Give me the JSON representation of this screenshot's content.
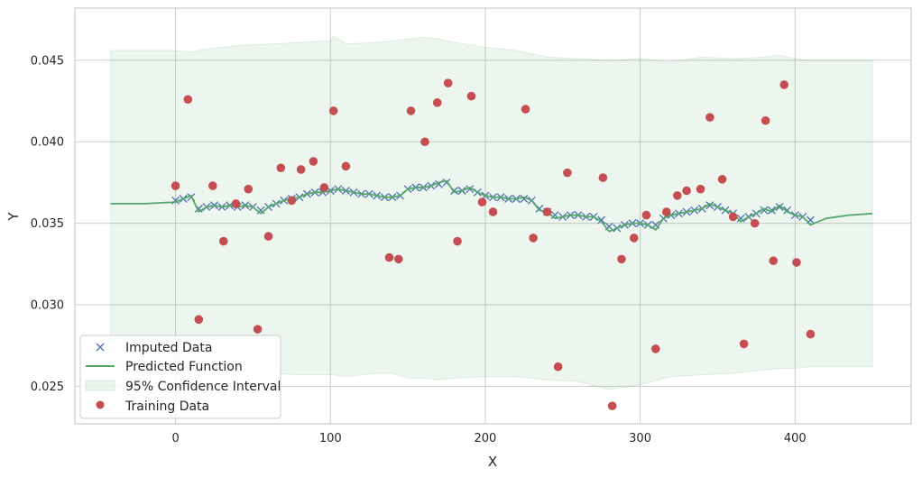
{
  "chart_data": {
    "type": "scatter",
    "title": "",
    "xlabel": "X",
    "ylabel": "Y",
    "xlim": [
      -65,
      475
    ],
    "ylim": [
      0.0227,
      0.0482
    ],
    "xticks": [
      0,
      100,
      200,
      300,
      400
    ],
    "yticks": [
      0.025,
      0.03,
      0.035,
      0.04,
      0.045
    ],
    "ytick_labels": [
      "0.025",
      "0.030",
      "0.035",
      "0.040",
      "0.045"
    ],
    "grid": true,
    "legend_position": "lower-left",
    "colors": {
      "imputed": "#4c72b0",
      "predicted": "#55a868",
      "confidence": "#55a868",
      "training": "#c44e52",
      "grid": "#cccccc",
      "axes_edge": "#cccccc"
    },
    "series": [
      {
        "name": "Imputed Data",
        "kind": "scatter-x",
        "x": [
          0,
          5,
          10,
          15,
          20,
          25,
          30,
          35,
          40,
          45,
          50,
          55,
          60,
          65,
          70,
          75,
          80,
          85,
          90,
          95,
          100,
          105,
          110,
          115,
          120,
          125,
          130,
          135,
          140,
          145,
          150,
          155,
          160,
          165,
          170,
          175,
          180,
          185,
          190,
          195,
          200,
          205,
          210,
          215,
          220,
          225,
          230,
          235,
          240,
          245,
          250,
          255,
          260,
          265,
          270,
          275,
          280,
          285,
          290,
          295,
          300,
          305,
          310,
          315,
          320,
          325,
          330,
          335,
          340,
          345,
          350,
          355,
          360,
          365,
          370,
          375,
          380,
          385,
          390,
          395,
          400,
          405,
          410
        ],
        "y": [
          0.0364,
          0.0365,
          0.0366,
          0.0359,
          0.036,
          0.0361,
          0.036,
          0.0361,
          0.036,
          0.0361,
          0.036,
          0.0358,
          0.036,
          0.0362,
          0.0364,
          0.0365,
          0.0366,
          0.0368,
          0.0369,
          0.0369,
          0.037,
          0.0371,
          0.037,
          0.0369,
          0.0368,
          0.0368,
          0.0367,
          0.0366,
          0.0366,
          0.0367,
          0.0371,
          0.0372,
          0.0372,
          0.0373,
          0.0374,
          0.0375,
          0.037,
          0.037,
          0.0371,
          0.0369,
          0.0367,
          0.0366,
          0.0366,
          0.0365,
          0.0365,
          0.0365,
          0.0364,
          0.0359,
          0.0357,
          0.0355,
          0.0354,
          0.0355,
          0.0355,
          0.0354,
          0.0354,
          0.0352,
          0.0348,
          0.0347,
          0.0349,
          0.035,
          0.035,
          0.0349,
          0.0349,
          0.0353,
          0.0355,
          0.0356,
          0.0357,
          0.0358,
          0.0359,
          0.0361,
          0.036,
          0.0358,
          0.0356,
          0.0353,
          0.0354,
          0.0356,
          0.0358,
          0.0358,
          0.036,
          0.0358,
          0.0355,
          0.0354,
          0.0352
        ]
      },
      {
        "name": "Predicted Function",
        "kind": "line",
        "x": [
          -42,
          -20,
          0,
          5,
          10,
          15,
          20,
          25,
          30,
          35,
          40,
          45,
          50,
          55,
          60,
          65,
          70,
          75,
          80,
          85,
          90,
          95,
          100,
          105,
          110,
          115,
          120,
          125,
          130,
          135,
          140,
          145,
          150,
          155,
          160,
          165,
          170,
          175,
          180,
          185,
          190,
          195,
          200,
          205,
          210,
          215,
          220,
          225,
          230,
          235,
          240,
          245,
          250,
          255,
          260,
          265,
          270,
          275,
          280,
          285,
          290,
          295,
          300,
          305,
          310,
          315,
          320,
          325,
          330,
          335,
          340,
          345,
          350,
          355,
          360,
          365,
          370,
          375,
          380,
          385,
          390,
          395,
          400,
          405,
          410,
          420,
          435,
          450
        ],
        "y": [
          0.0362,
          0.0362,
          0.0363,
          0.0365,
          0.0367,
          0.0357,
          0.036,
          0.0361,
          0.036,
          0.0361,
          0.036,
          0.0361,
          0.036,
          0.0356,
          0.036,
          0.0362,
          0.0364,
          0.0365,
          0.0366,
          0.0368,
          0.0369,
          0.0369,
          0.037,
          0.0371,
          0.037,
          0.0369,
          0.0368,
          0.0368,
          0.0367,
          0.0366,
          0.0366,
          0.0367,
          0.0371,
          0.0372,
          0.0372,
          0.0373,
          0.0375,
          0.0376,
          0.0369,
          0.037,
          0.0372,
          0.0369,
          0.0367,
          0.0366,
          0.0366,
          0.0365,
          0.0365,
          0.0366,
          0.0364,
          0.0358,
          0.0357,
          0.0353,
          0.0354,
          0.0355,
          0.0355,
          0.0354,
          0.0354,
          0.0351,
          0.0345,
          0.0347,
          0.0349,
          0.035,
          0.035,
          0.0349,
          0.0346,
          0.0353,
          0.0355,
          0.0356,
          0.0357,
          0.0358,
          0.0359,
          0.0362,
          0.036,
          0.0358,
          0.0356,
          0.0351,
          0.0354,
          0.0356,
          0.0359,
          0.0357,
          0.0361,
          0.0357,
          0.0355,
          0.0354,
          0.0349,
          0.0353,
          0.0355,
          0.0356
        ]
      },
      {
        "name": "95% Confidence Interval",
        "kind": "band",
        "x": [
          -42,
          0,
          10,
          20,
          40,
          60,
          80,
          100,
          102,
          110,
          130,
          140,
          150,
          160,
          170,
          180,
          200,
          220,
          240,
          260,
          280,
          300,
          320,
          340,
          360,
          380,
          390,
          400,
          410,
          420,
          450
        ],
        "lower": [
          0.0262,
          0.0262,
          0.026,
          0.026,
          0.0259,
          0.0258,
          0.0257,
          0.0257,
          0.0257,
          0.0256,
          0.0258,
          0.0258,
          0.0255,
          0.0255,
          0.0254,
          0.0255,
          0.0256,
          0.0256,
          0.0254,
          0.0253,
          0.0248,
          0.0251,
          0.0256,
          0.0257,
          0.0258,
          0.026,
          0.0261,
          0.0261,
          0.0262,
          0.0262,
          0.0262
        ],
        "upper": [
          0.0456,
          0.0456,
          0.0455,
          0.0457,
          0.0459,
          0.046,
          0.0461,
          0.0462,
          0.0465,
          0.046,
          0.0461,
          0.0462,
          0.0463,
          0.0464,
          0.0463,
          0.0461,
          0.0458,
          0.0456,
          0.0452,
          0.0451,
          0.045,
          0.0451,
          0.0449,
          0.0452,
          0.0451,
          0.0452,
          0.0453,
          0.0451,
          0.045,
          0.045,
          0.045
        ]
      },
      {
        "name": "Training Data",
        "kind": "scatter-dot",
        "x": [
          0,
          8,
          15,
          24,
          31,
          39,
          47,
          53,
          60,
          68,
          75,
          81,
          89,
          96,
          102,
          110,
          138,
          144,
          152,
          161,
          169,
          176,
          182,
          191,
          198,
          205,
          226,
          231,
          240,
          247,
          253,
          276,
          282,
          288,
          296,
          304,
          310,
          317,
          324,
          330,
          339,
          345,
          353,
          360,
          367,
          374,
          381,
          386,
          393,
          401,
          410
        ],
        "y": [
          0.0373,
          0.0426,
          0.0291,
          0.0373,
          0.0339,
          0.0362,
          0.0371,
          0.0285,
          0.0342,
          0.0384,
          0.0364,
          0.0383,
          0.0388,
          0.0372,
          0.0419,
          0.0385,
          0.0329,
          0.0328,
          0.0419,
          0.04,
          0.0424,
          0.0436,
          0.0339,
          0.0428,
          0.0363,
          0.0357,
          0.042,
          0.0341,
          0.0357,
          0.0262,
          0.0381,
          0.0378,
          0.0238,
          0.0328,
          0.0341,
          0.0355,
          0.0273,
          0.0357,
          0.0367,
          0.037,
          0.0371,
          0.0415,
          0.0377,
          0.0354,
          0.0276,
          0.035,
          0.0413,
          0.0327,
          0.0435,
          0.0326,
          0.0282
        ]
      }
    ]
  }
}
